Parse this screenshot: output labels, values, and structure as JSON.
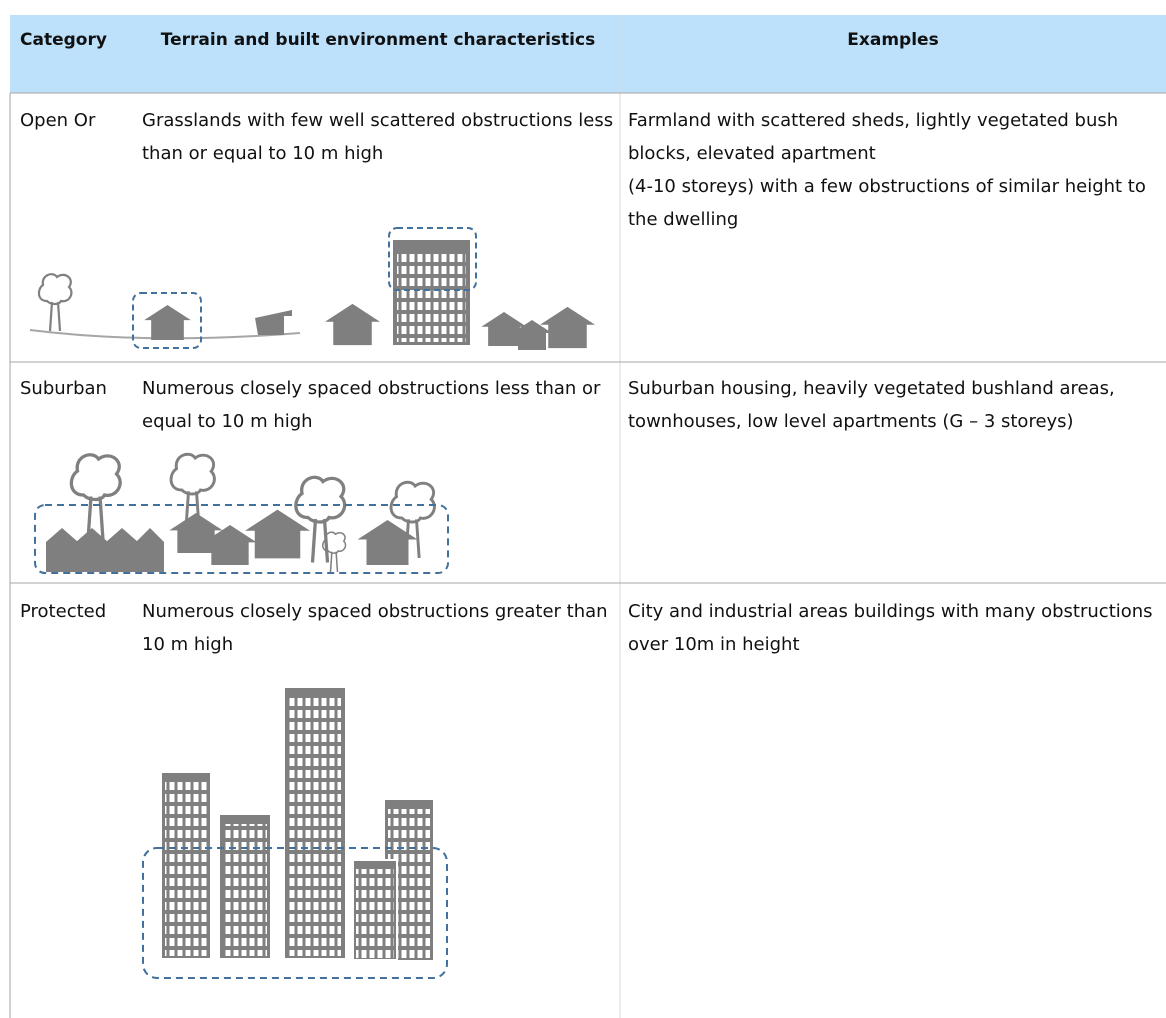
{
  "table": {
    "header": [
      "Category",
      "Terrain and built environment characteristics",
      "Examples"
    ],
    "rows": [
      [
        "Open Or",
        "Grasslands with few well scattered obstructions less than or equal to 10 m high",
        "Farmland with scattered sheds, lightly vegetated bush blocks, elevated apartment\n(4-10 storeys) with a few obstructions of similar height to the dwelling"
      ],
      [
        "Suburban",
        "Numerous closely spaced obstructions less than or equal to 10 m high",
        "Suburban housing, heavily vegetated bushland areas, townhouses, low level apartments (G – 3 storeys)"
      ],
      [
        "Protected",
        "Numerous closely spaced obstructions greater than 10 m high",
        "City and industrial areas buildings with many obstructions over 10m in height"
      ]
    ]
  }
}
